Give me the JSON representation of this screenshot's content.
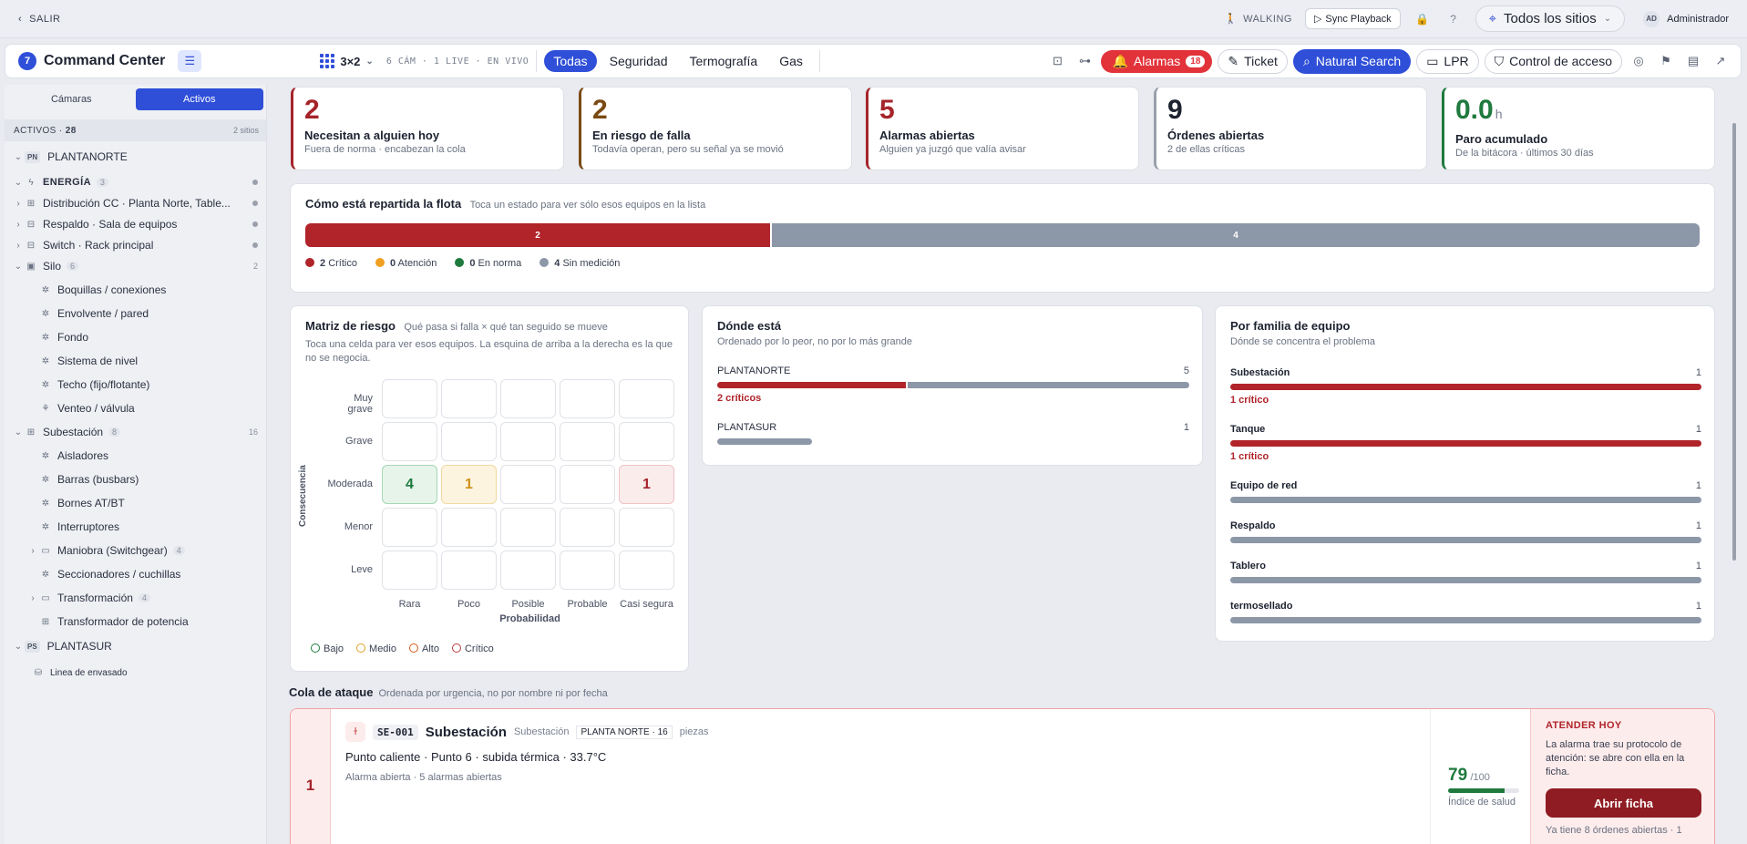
{
  "topbar": {
    "exit_label": "SALIR",
    "walking_label": "WALKING",
    "sync_label": "Sync Playback",
    "site_selector": "Todos los sitios",
    "user_initials": "AD",
    "user_name": "Administrador"
  },
  "header": {
    "logo_glyph": "7",
    "app_title": "Command Center",
    "grid_layout": "3×2",
    "cam_info": "6 CÁM · 1 LIVE · EN VIVO",
    "tabs": [
      {
        "label": "Todas",
        "active": true
      },
      {
        "label": "Seguridad",
        "active": false
      },
      {
        "label": "Termografía",
        "active": false
      },
      {
        "label": "Gas",
        "active": false
      }
    ],
    "alarms_label": "Alarmas",
    "alarms_count": "18",
    "ticket_label": "Ticket",
    "natural_search_label": "Natural Search",
    "lpr_label": "LPR",
    "access_label": "Control de acceso"
  },
  "sidebar": {
    "seg_cameras": "Cámaras",
    "seg_assets": "Activos",
    "assets_heading": "ACTIVOS",
    "assets_count": "28",
    "sites_count": "2 sitios",
    "tree": [
      {
        "label": "PLANTANORTE",
        "tag": "PN"
      },
      {
        "label": "ENERGÍA",
        "badge": "3"
      },
      {
        "label": "Distribución CC · Planta Norte, Table..."
      },
      {
        "label": "Respaldo · Sala de equipos"
      },
      {
        "label": "Switch · Rack principal"
      },
      {
        "label": "Silo",
        "badge": "6",
        "right": "2"
      },
      {
        "label": "Boquillas / conexiones"
      },
      {
        "label": "Envolvente / pared"
      },
      {
        "label": "Fondo"
      },
      {
        "label": "Sistema de nivel"
      },
      {
        "label": "Techo (fijo/flotante)"
      },
      {
        "label": "Venteo / válvula"
      },
      {
        "label": "Subestación",
        "badge": "8",
        "right": "16"
      },
      {
        "label": "Aisladores"
      },
      {
        "label": "Barras (busbars)"
      },
      {
        "label": "Bornes AT/BT"
      },
      {
        "label": "Interruptores"
      },
      {
        "label": "Maniobra (Switchgear)",
        "badge": "4"
      },
      {
        "label": "Seccionadores / cuchillas"
      },
      {
        "label": "Transformación",
        "badge": "4"
      },
      {
        "label": "Transformador de potencia"
      },
      {
        "label": "PLANTASUR",
        "tag": "PS"
      },
      {
        "label": "Linea de envasado"
      }
    ]
  },
  "kpis": [
    {
      "value": "2",
      "label": "Necesitan a alguien hoy",
      "sub": "Fuera de norma · encabezan la cola",
      "color": "#a5242a"
    },
    {
      "value": "2",
      "label": "En riesgo de falla",
      "sub": "Todavía operan, pero su señal ya se movió",
      "color": "#7a4a14"
    },
    {
      "value": "5",
      "label": "Alarmas abiertas",
      "sub": "Alguien ya juzgó que valía avisar",
      "color": "#a5242a"
    },
    {
      "value": "9",
      "label": "Órdenes abiertas",
      "sub": "2 de ellas críticas",
      "color": "#1d2230"
    },
    {
      "value": "0.0",
      "unit": "h",
      "label": "Paro acumulado",
      "sub": "De la bitácora · últimos 30 días",
      "color": "#1f7a3e"
    }
  ],
  "fleet": {
    "title": "Cómo está repartida la flota",
    "hint": "Toca un estado para ver sólo esos equipos en la lista",
    "segments": [
      {
        "label": "Crítico",
        "count": 2,
        "color": "#b0242a"
      },
      {
        "label": "Atención",
        "count": 0,
        "color": "#f0a020"
      },
      {
        "label": "En norma",
        "count": 0,
        "color": "#1f7a3e"
      },
      {
        "label": "Sin medición",
        "count": 4,
        "color": "#8c97a8"
      }
    ]
  },
  "risk": {
    "title": "Matriz de riesgo",
    "hint": "Qué pasa si falla × qué tan seguido se mueve",
    "desc": "Toca una celda para ver esos equipos. La esquina de arriba a la derecha es la que no se negocia.",
    "y_axis": "Consecuencia",
    "x_axis": "Probabilidad",
    "rows": [
      "Muy grave",
      "Grave",
      "Moderada",
      "Menor",
      "Leve"
    ],
    "cols": [
      "Rara",
      "Poco",
      "Posible",
      "Probable",
      "Casi segura"
    ],
    "cells": [
      {
        "row": 2,
        "col": 0,
        "value": "4",
        "level": "low"
      },
      {
        "row": 2,
        "col": 1,
        "value": "1",
        "level": "medium"
      },
      {
        "row": 2,
        "col": 4,
        "value": "1",
        "level": "critical"
      }
    ],
    "legend": [
      {
        "label": "Bajo",
        "color": "#1f7a3e"
      },
      {
        "label": "Medio",
        "color": "#e0a020"
      },
      {
        "label": "Alto",
        "color": "#d85a1a"
      },
      {
        "label": "Crítico",
        "color": "#c0393e"
      }
    ]
  },
  "where": {
    "title": "Dónde está",
    "desc": "Ordenado por lo peor, no por lo más grande",
    "sites": [
      {
        "name": "PLANTANORTE",
        "count": "5",
        "critical": 2,
        "total": 5,
        "crit_label": "2 críticos"
      },
      {
        "name": "PLANTASUR",
        "count": "1",
        "critical": 0,
        "total": 1,
        "crit_label": ""
      }
    ]
  },
  "family": {
    "title": "Por familia de equipo",
    "desc": "Dónde se concentra el problema",
    "items": [
      {
        "name": "Subestación",
        "count": "1",
        "critical": true,
        "crit_label": "1 crítico"
      },
      {
        "name": "Tanque",
        "count": "1",
        "critical": true,
        "crit_label": "1 crítico"
      },
      {
        "name": "Equipo de red",
        "count": "1",
        "critical": false,
        "crit_label": ""
      },
      {
        "name": "Respaldo",
        "count": "1",
        "critical": false,
        "crit_label": ""
      },
      {
        "name": "Tablero",
        "count": "1",
        "critical": false,
        "crit_label": ""
      },
      {
        "name": "termosellado",
        "count": "1",
        "critical": false,
        "crit_label": ""
      }
    ]
  },
  "queue": {
    "title": "Cola de ataque",
    "hint": "Ordenada por urgencia, no por nombre ni por fecha",
    "item": {
      "rank": "1",
      "code": "SE-001",
      "name": "Subestación",
      "sub": "Subestación",
      "location": "PLANTA NORTE · 16",
      "tail": "piezas",
      "reading": "Punto caliente · Punto 6 · subida térmica · 33.7°C",
      "meta": "Alarma abierta  · 5 alarmas abiertas",
      "score": "79",
      "score_of": "/100",
      "score_fraction": 0.79,
      "score_caption": "Índice de salud",
      "action_heading": "ATENDER HOY",
      "action_text": "La alarma trae su protocolo de atención: se abre con ella en la ficha.",
      "action_button": "Abrir ficha",
      "note": "Ya tiene 8 órdenes abiertas · 1"
    }
  }
}
